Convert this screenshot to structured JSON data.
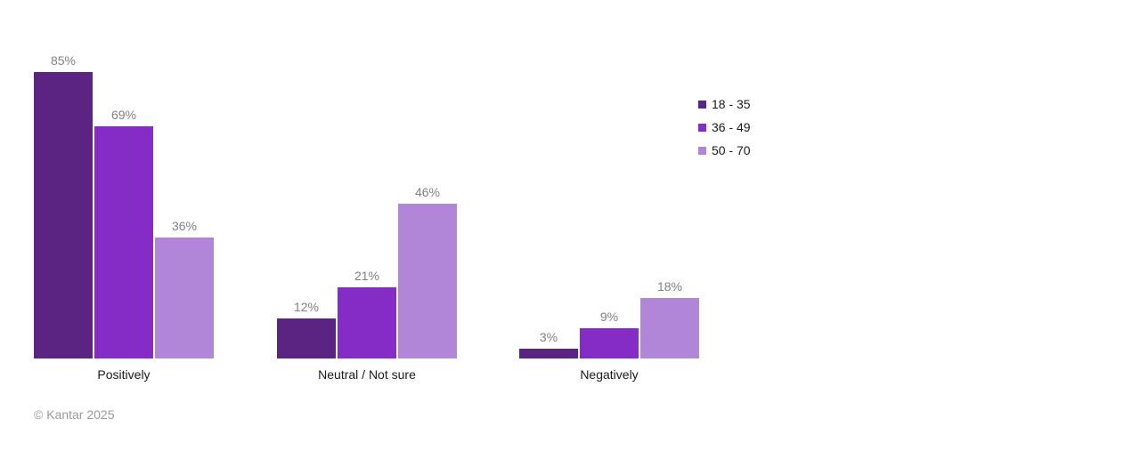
{
  "chart_data": {
    "type": "bar",
    "title": "",
    "categories": [
      "Positively",
      "Neutral / Not sure",
      "Negatively"
    ],
    "series": [
      {
        "name": "18 - 35",
        "color": "#5B2382",
        "values": [
          85,
          12,
          3
        ],
        "labels": [
          "85%",
          "12%",
          "3%"
        ]
      },
      {
        "name": "36 - 49",
        "color": "#862CC6",
        "values": [
          69,
          21,
          9
        ],
        "labels": [
          "69%",
          "21%",
          "9%"
        ]
      },
      {
        "name": "50 - 70",
        "color": "#B185D8",
        "values": [
          36,
          46,
          18
        ],
        "labels": [
          "36%",
          "46%",
          "18%"
        ]
      }
    ],
    "unit": "%",
    "ylim": [
      0,
      100
    ],
    "grid": false,
    "axes_visible": false,
    "legend_position": "top-right",
    "value_label_color": "#808080",
    "category_label_color": "#1a1a1a"
  },
  "footer": {
    "copyright": "© Kantar 2025"
  }
}
